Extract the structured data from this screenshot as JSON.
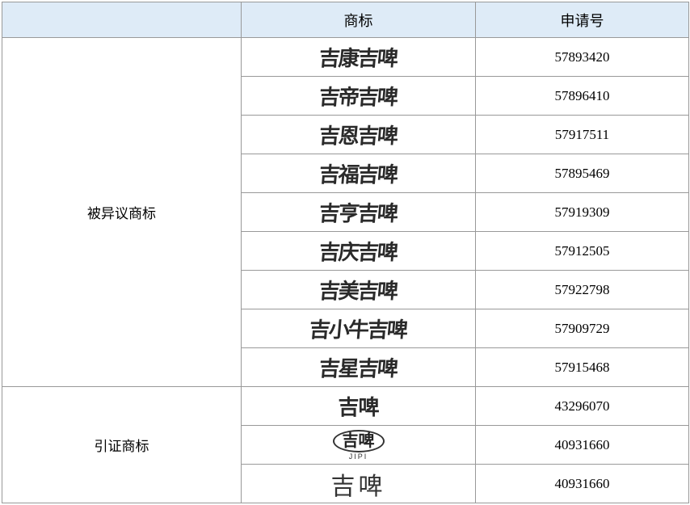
{
  "table": {
    "header": {
      "col1": "",
      "col2": "商标",
      "col3": "申请号"
    },
    "header_bg": "#deebf7",
    "border_color": "#999999",
    "font_family": "SimSun",
    "groups": [
      {
        "category": "被异议商标",
        "rowspan": 9,
        "rows": [
          {
            "mark_text": "吉康吉啤",
            "mark_style": "brush",
            "app_no": "57893420"
          },
          {
            "mark_text": "吉帝吉啤",
            "mark_style": "brush",
            "app_no": "57896410"
          },
          {
            "mark_text": "吉恩吉啤",
            "mark_style": "brush",
            "app_no": "57917511"
          },
          {
            "mark_text": "吉福吉啤",
            "mark_style": "brush",
            "app_no": "57895469"
          },
          {
            "mark_text": "吉亨吉啤",
            "mark_style": "brush",
            "app_no": "57919309"
          },
          {
            "mark_text": "吉庆吉啤",
            "mark_style": "brush",
            "app_no": "57912505"
          },
          {
            "mark_text": "吉美吉啤",
            "mark_style": "brush",
            "app_no": "57922798"
          },
          {
            "mark_text": "吉小牛吉啤",
            "mark_style": "brush",
            "app_no": "57909729"
          },
          {
            "mark_text": "吉星吉啤",
            "mark_style": "brush",
            "app_no": "57915468"
          }
        ]
      },
      {
        "category": "引证商标",
        "rowspan": 3,
        "rows": [
          {
            "mark_text": "吉啤",
            "mark_style": "brush-alt",
            "app_no": "43296070"
          },
          {
            "mark_text": "吉啤",
            "mark_sub": "JIPI",
            "mark_style": "circle",
            "app_no": "40931660"
          },
          {
            "mark_text": "吉啤",
            "mark_style": "plain",
            "app_no": "40931660"
          }
        ]
      }
    ]
  }
}
